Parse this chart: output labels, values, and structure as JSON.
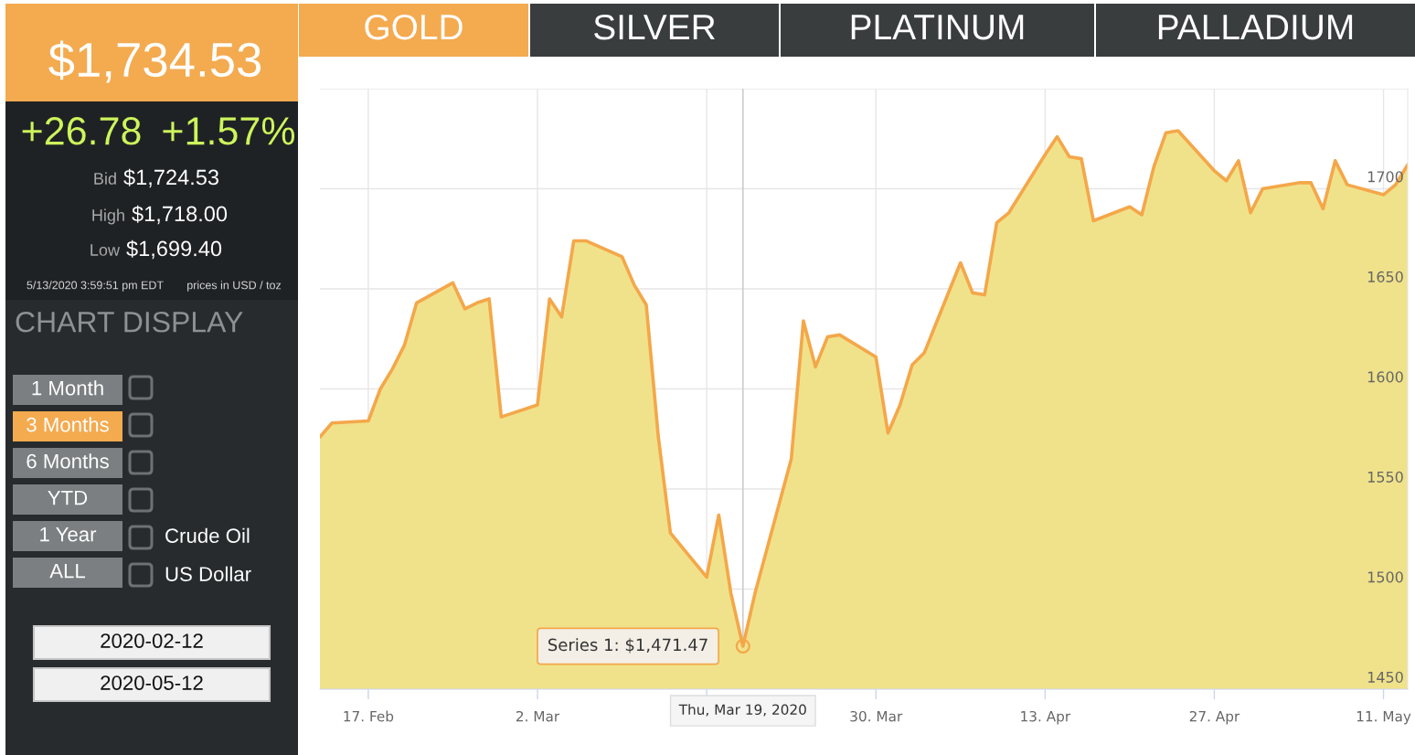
{
  "chart_data": [
    {
      "type": "other",
      "title": "$1,734.53",
      "annotations": [
        "+26.78",
        "+1.57%",
        "Bid",
        "$1,724.53",
        "High",
        "$1,718.00",
        "Low",
        "$1,699.40",
        "5/13/2020 3:59:51 pm EDT",
        "prices in USD / toz",
        "CHART DISPLAY",
        "1 Month",
        "3 Months",
        "6 Months",
        "YTD",
        "1 Year",
        "ALL",
        "Crude Oil",
        "US Dollar",
        "2020-02-12",
        "2020-05-12"
      ]
    },
    {
      "type": "area",
      "x": [
        "2020-02-13",
        "2020-02-14",
        "2020-02-17",
        "2020-02-18",
        "2020-02-19",
        "2020-02-20",
        "2020-02-21",
        "2020-02-24",
        "2020-02-25",
        "2020-02-26",
        "2020-02-27",
        "2020-02-28",
        "2020-03-02",
        "2020-03-03",
        "2020-03-04",
        "2020-03-05",
        "2020-03-06",
        "2020-03-09",
        "2020-03-10",
        "2020-03-11",
        "2020-03-12",
        "2020-03-13",
        "2020-03-16",
        "2020-03-17",
        "2020-03-18",
        "2020-03-19",
        "2020-03-20",
        "2020-03-23",
        "2020-03-24",
        "2020-03-25",
        "2020-03-26",
        "2020-03-27",
        "2020-03-30",
        "2020-03-31",
        "2020-04-01",
        "2020-04-02",
        "2020-04-03",
        "2020-04-06",
        "2020-04-07",
        "2020-04-08",
        "2020-04-09",
        "2020-04-10",
        "2020-04-13",
        "2020-04-14",
        "2020-04-15",
        "2020-04-16",
        "2020-04-17",
        "2020-04-20",
        "2020-04-21",
        "2020-04-22",
        "2020-04-23",
        "2020-04-24",
        "2020-04-27",
        "2020-04-28",
        "2020-04-29",
        "2020-04-30",
        "2020-05-01",
        "2020-05-04",
        "2020-05-05",
        "2020-05-06",
        "2020-05-07",
        "2020-05-08",
        "2020-05-11",
        "2020-05-12",
        "2020-05-13"
      ],
      "series": [
        {
          "type": "area",
          "color": "#f0e28a",
          "values": [
            1576,
            1583,
            1584,
            1600,
            1610,
            1622,
            1643,
            1653,
            1640,
            1643,
            1645,
            1586,
            1592,
            1645,
            1636,
            1674,
            1674,
            1666,
            1652,
            1642,
            1576,
            1528,
            1506,
            1537,
            1498,
            1471.47,
            1498,
            1565,
            1634,
            1611,
            1626,
            1627,
            1616,
            1578,
            1592,
            1612,
            1618,
            1663,
            1648,
            1647,
            1683,
            1688,
            1717,
            1726,
            1716,
            1715,
            1684,
            1691,
            1687,
            1711,
            1728,
            1729,
            1709,
            1704,
            1714,
            1688,
            1700,
            1703,
            1703,
            1690,
            1714,
            1702,
            1697,
            1702,
            1712
          ]
        }
      ],
      "xlim": [
        "2020-02-13",
        "2020-05-13"
      ],
      "xticks": [
        {
          "value": "2020-02-17",
          "label": "17. Feb"
        },
        {
          "value": "2020-03-02",
          "label": "2. Mar"
        },
        {
          "value": "2020-03-16",
          "label": null
        },
        {
          "value": "2020-03-30",
          "label": "30. Mar"
        },
        {
          "value": "2020-04-13",
          "label": "13. Apr"
        },
        {
          "value": "2020-04-27",
          "label": "27. Apr"
        },
        {
          "value": "2020-05-11",
          "label": "11. May"
        }
      ],
      "ylim": [
        1450,
        1750
      ],
      "yticks": [
        1450,
        1500,
        1550,
        1600,
        1650,
        1700,
        {
          "value": 1750,
          "label": null
        }
      ],
      "grid": true,
      "ref_lines": [
        {
          "axis": "x",
          "value": "2020-03-19",
          "label": "Thu, Mar 19, 2020",
          "color": "#cccccc"
        }
      ],
      "annotations": [
        "GOLD",
        "SILVER",
        "PLATINUM",
        "PALLADIUM",
        {
          "text": "Series 1: $1,471.47",
          "x": "2020-03-19",
          "y": 1471.47
        }
      ]
    }
  ]
}
